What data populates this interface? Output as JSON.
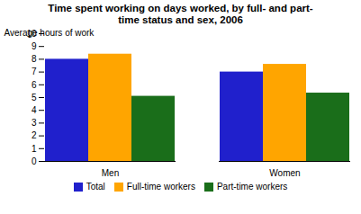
{
  "chart_data": {
    "type": "bar",
    "title": "Time spent working on days worked, by full- and part-\ntime status and sex, 2006",
    "ylabel": "Average hours of work",
    "categories": [
      "Men",
      "Women"
    ],
    "series": [
      {
        "name": "Total",
        "color": "#2020cc",
        "values": [
          8.0,
          7.0
        ]
      },
      {
        "name": "Full-time workers",
        "color": "#ffa500",
        "values": [
          8.4,
          7.6
        ]
      },
      {
        "name": "Part-time workers",
        "color": "#1a6e1a",
        "values": [
          5.1,
          5.35
        ]
      }
    ],
    "ylim": [
      0,
      10
    ],
    "yticks": [
      0,
      1,
      2,
      3,
      4,
      5,
      6,
      7,
      8,
      9,
      10
    ],
    "grid": false,
    "legend": "bottom"
  }
}
